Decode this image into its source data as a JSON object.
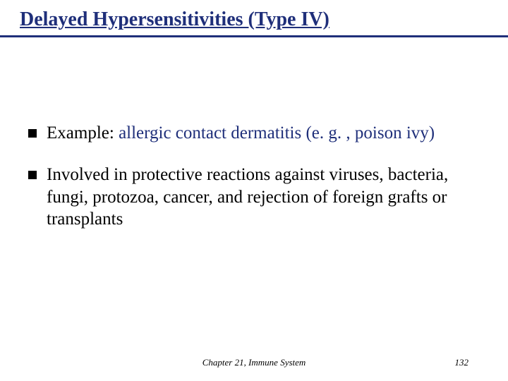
{
  "slide": {
    "title": "Delayed Hypersensitivities (Type IV)",
    "title_color": "#1f2f7a",
    "rule_color": "#1f2f7a",
    "background_color": "#ffffff",
    "title_fontsize": 28,
    "body_fontsize": 25,
    "bullets": [
      {
        "prefix": "Example: ",
        "highlight": "allergic contact dermatitis (e. g. , poison ivy)",
        "rest": "",
        "highlight_color": "#1f2f7a"
      },
      {
        "prefix": "",
        "highlight": "",
        "rest": "Involved in protective reactions against viruses, bacteria, fungi, protozoa, cancer, and rejection of foreign grafts or transplants",
        "highlight_color": "#1f2f7a"
      }
    ],
    "footer": "Chapter 21, Immune System",
    "page_number": "132"
  }
}
